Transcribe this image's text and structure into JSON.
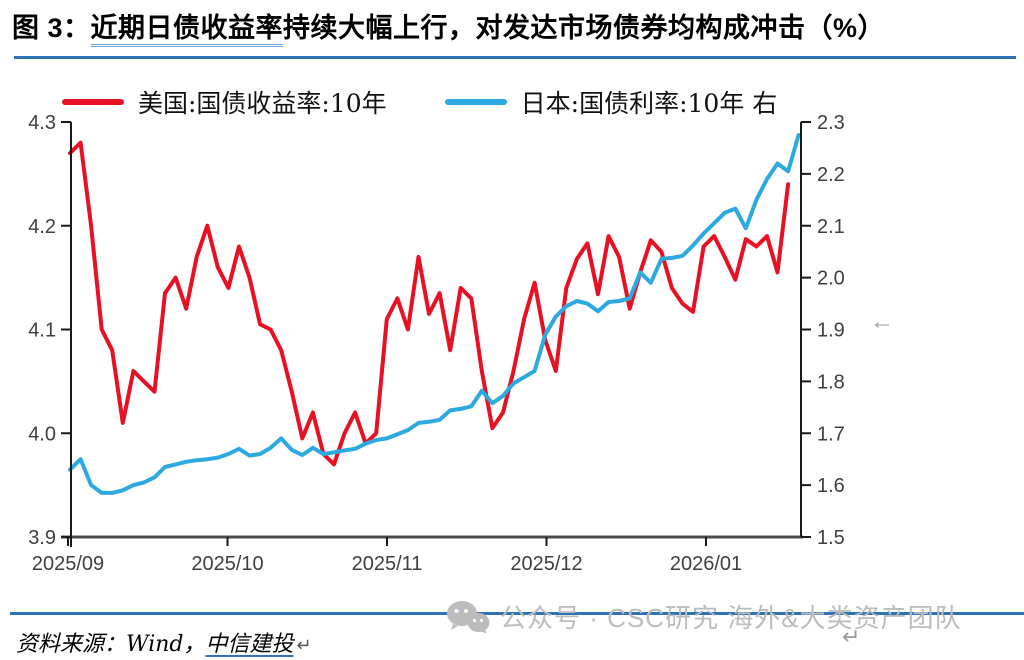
{
  "title": {
    "prefix": "图 3：",
    "underlined": "近期日债收益率",
    "rest": "持续大幅上行，对发达市场债券均构成冲击（%）"
  },
  "legend": [
    {
      "label": "美国:国债收益率:10年",
      "color": "#E81123"
    },
    {
      "label": "日本:国债利率:10年 右",
      "color": "#2BA9E0"
    }
  ],
  "marks": {
    "axis_arrow": "←",
    "return_mark": "↵"
  },
  "watermark": {
    "icon": "wechat-icon",
    "text": "公众号 · CSC研究 海外&大类资产团队"
  },
  "source": {
    "prefix": "资料来源：Wind，",
    "underlined": "中信建投"
  },
  "accent_colors": {
    "divider_blue": "#2E74B5",
    "us_red": "#E81123",
    "japan_blue": "#2BA9E0"
  },
  "chart_data": {
    "type": "line",
    "title": "近期日债收益率持续大幅上行，对发达市场债券均构成冲击（%）",
    "grid": false,
    "legend_position": "top",
    "x_tick_labels": [
      "2025/09",
      "2025/10",
      "2025/11",
      "2025/12",
      "2026/01"
    ],
    "left_axis": {
      "ticks": [
        "4.3",
        "4.2",
        "4.1",
        "4.0",
        "3.9"
      ],
      "min": 3.9,
      "max": 4.3
    },
    "right_axis": {
      "ticks": [
        "2.3",
        "2.2",
        "2.1",
        "2.0",
        "1.9",
        "1.8",
        "1.7",
        "1.6",
        "1.5"
      ],
      "min": 1.5,
      "max": 2.3
    },
    "series": [
      {
        "name": "美国:国债收益率:10年",
        "axis": "left",
        "color": "#E81123",
        "values": [
          4.27,
          4.28,
          4.2,
          4.1,
          4.08,
          4.01,
          4.06,
          4.05,
          4.04,
          4.135,
          4.15,
          4.12,
          4.17,
          4.2,
          4.16,
          4.14,
          4.18,
          4.15,
          4.105,
          4.1,
          4.08,
          4.04,
          3.995,
          4.02,
          3.98,
          3.97,
          4.0,
          4.02,
          3.99,
          4.0,
          4.11,
          4.13,
          4.1,
          4.17,
          4.115,
          4.135,
          4.08,
          4.14,
          4.13,
          4.06,
          4.005,
          4.02,
          4.06,
          4.11,
          4.145,
          4.09,
          4.06,
          4.14,
          4.168,
          4.183,
          4.134,
          4.19,
          4.17,
          4.12,
          4.155,
          4.186,
          4.175,
          4.14,
          4.125,
          4.117,
          4.18,
          4.19,
          4.17,
          4.148,
          4.187,
          4.18,
          4.19,
          4.155,
          4.24
        ]
      },
      {
        "name": "日本:国债利率:10年",
        "axis": "right",
        "color": "#2BA9E0",
        "values": [
          1.63,
          1.65,
          1.6,
          1.585,
          1.585,
          1.59,
          1.6,
          1.605,
          1.615,
          1.635,
          1.64,
          1.645,
          1.648,
          1.65,
          1.653,
          1.66,
          1.67,
          1.657,
          1.66,
          1.672,
          1.69,
          1.668,
          1.658,
          1.672,
          1.66,
          1.663,
          1.667,
          1.67,
          1.68,
          1.687,
          1.69,
          1.698,
          1.706,
          1.72,
          1.722,
          1.726,
          1.744,
          1.747,
          1.752,
          1.782,
          1.758,
          1.772,
          1.796,
          1.808,
          1.82,
          1.89,
          1.925,
          1.945,
          1.955,
          1.95,
          1.935,
          1.953,
          1.955,
          1.96,
          2.01,
          1.99,
          2.036,
          2.038,
          2.042,
          2.062,
          2.085,
          2.105,
          2.125,
          2.133,
          2.095,
          2.15,
          2.19,
          2.22,
          2.205,
          2.275
        ]
      }
    ]
  }
}
